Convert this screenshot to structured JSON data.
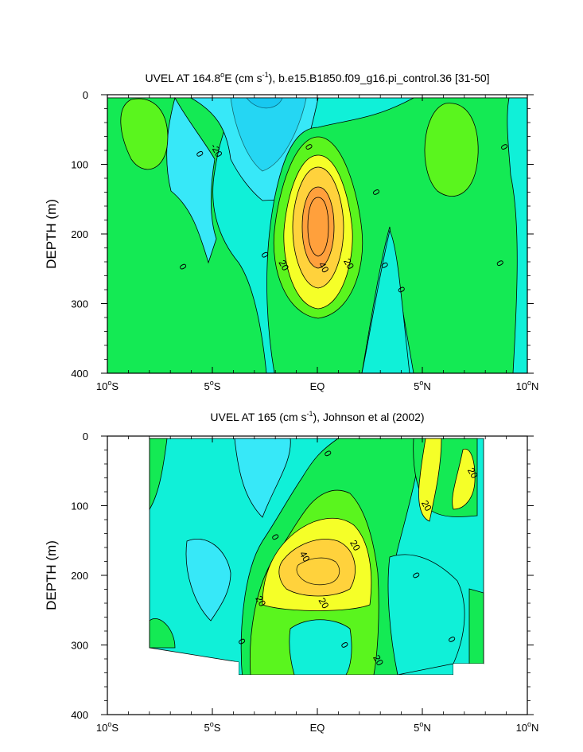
{
  "colors": {
    "cyan_dark": "#18c8f0",
    "cyan": "#37e8f8",
    "cyan_light": "#10f0d8",
    "green": "#14ea54",
    "green_light": "#5af51e",
    "yellow": "#f5ff28",
    "orange_light": "#ffd23c",
    "orange": "#ffa03c"
  },
  "chart_data": [
    {
      "type": "contour",
      "title_main": "UVEL AT 164.8",
      "title_deg": "o",
      "title_e": "E (cm s",
      "title_exp": "-1",
      "title_rest": "), b.e15.B1850.f09_g16.pi_control.36 [31-50]",
      "ylabel": "DEPTH (m)",
      "xlim": [
        -10,
        10
      ],
      "ylim": [
        400,
        0
      ],
      "x_ticks": [
        {
          "value": -10,
          "num": "10",
          "deg": "o",
          "hem": "S"
        },
        {
          "value": -5,
          "num": "5",
          "deg": "o",
          "hem": "S"
        },
        {
          "value": 0,
          "num": "EQ",
          "deg": "",
          "hem": ""
        },
        {
          "value": 5,
          "num": "5",
          "deg": "o",
          "hem": "N"
        },
        {
          "value": 10,
          "num": "10",
          "deg": "o",
          "hem": "N"
        }
      ],
      "y_ticks": [
        {
          "value": 0,
          "label": "0"
        },
        {
          "value": 100,
          "label": "100"
        },
        {
          "value": 200,
          "label": "200"
        },
        {
          "value": 300,
          "label": "300"
        },
        {
          "value": 400,
          "label": "400"
        }
      ],
      "data_extent": {
        "lat": [
          -10,
          10
        ],
        "depth": [
          5,
          400
        ]
      },
      "max": {
        "lat": 0,
        "depth": 180,
        "value": 50
      },
      "contour_labels": [
        {
          "lat": -5.6,
          "depth": 85,
          "text": "0"
        },
        {
          "lat": -6.4,
          "depth": 247,
          "text": "0"
        },
        {
          "lat": -4.8,
          "depth": 80,
          "text": "-20"
        },
        {
          "lat": -0.4,
          "depth": 75,
          "text": "0"
        },
        {
          "lat": -2.5,
          "depth": 230,
          "text": "0"
        },
        {
          "lat": -1.6,
          "depth": 245,
          "text": "20"
        },
        {
          "lat": 0.3,
          "depth": 248,
          "text": "40"
        },
        {
          "lat": 1.5,
          "depth": 243,
          "text": "20"
        },
        {
          "lat": 2.8,
          "depth": 140,
          "text": "0"
        },
        {
          "lat": 3.2,
          "depth": 245,
          "text": "0"
        },
        {
          "lat": 4.0,
          "depth": 280,
          "text": "0"
        },
        {
          "lat": 8.7,
          "depth": 242,
          "text": "0"
        },
        {
          "lat": 8.9,
          "depth": 75,
          "text": "0"
        }
      ]
    },
    {
      "type": "contour",
      "title_main": "UVEL AT 165 (cm s",
      "title_exp": "-1",
      "title_rest": "), Johnson et al (2002)",
      "ylabel": "DEPTH (m)",
      "xlim": [
        -10,
        10
      ],
      "ylim": [
        400,
        0
      ],
      "x_ticks": [
        {
          "value": -10,
          "num": "10",
          "deg": "o",
          "hem": "S"
        },
        {
          "value": -5,
          "num": "5",
          "deg": "o",
          "hem": "S"
        },
        {
          "value": 0,
          "num": "EQ",
          "deg": "",
          "hem": ""
        },
        {
          "value": 5,
          "num": "5",
          "deg": "o",
          "hem": "N"
        },
        {
          "value": 10,
          "num": "10",
          "deg": "o",
          "hem": "N"
        }
      ],
      "y_ticks": [
        {
          "value": 0,
          "label": "0"
        },
        {
          "value": 100,
          "label": "100"
        },
        {
          "value": 200,
          "label": "200"
        },
        {
          "value": 300,
          "label": "300"
        },
        {
          "value": 400,
          "label": "400"
        }
      ],
      "data_extent": {
        "lat": [
          -8,
          8
        ],
        "depth": [
          5,
          365
        ]
      },
      "max": {
        "lat": 0,
        "depth": 185,
        "value": 45
      },
      "contour_labels": [
        {
          "lat": 0.5,
          "depth": 25,
          "text": "0"
        },
        {
          "lat": 7.4,
          "depth": 53,
          "text": "20"
        },
        {
          "lat": 5.2,
          "depth": 100,
          "text": "20"
        },
        {
          "lat": -2.0,
          "depth": 145,
          "text": "0"
        },
        {
          "lat": -0.6,
          "depth": 173,
          "text": "40"
        },
        {
          "lat": 1.8,
          "depth": 157,
          "text": "20"
        },
        {
          "lat": 4.7,
          "depth": 200,
          "text": "0"
        },
        {
          "lat": -2.7,
          "depth": 237,
          "text": "20"
        },
        {
          "lat": 0.3,
          "depth": 240,
          "text": "20"
        },
        {
          "lat": -3.6,
          "depth": 295,
          "text": "0"
        },
        {
          "lat": 1.3,
          "depth": 300,
          "text": "0"
        },
        {
          "lat": 2.9,
          "depth": 322,
          "text": "20"
        },
        {
          "lat": 6.4,
          "depth": 292,
          "text": "0"
        }
      ]
    }
  ]
}
